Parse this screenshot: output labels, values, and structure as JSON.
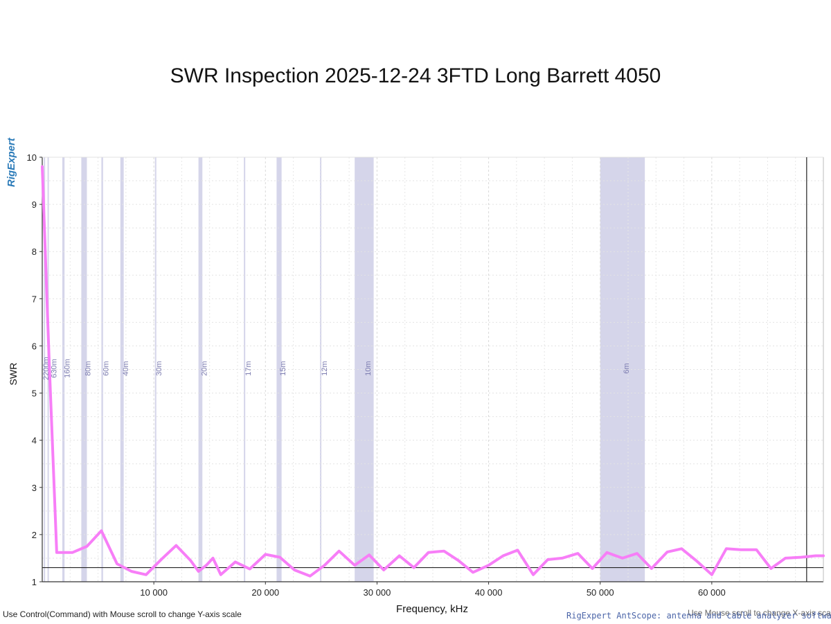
{
  "chart_data": {
    "type": "line",
    "title": "SWR Inspection 2025-12-24 3FTD Long Barrett 4050",
    "xlabel": "Frequency, kHz",
    "ylabel": "SWR",
    "xlim": [
      0,
      70000
    ],
    "ylim": [
      1,
      10
    ],
    "x_ticks": [
      "10 000",
      "20 000",
      "30 000",
      "40 000",
      "50 000",
      "60 000"
    ],
    "x_tick_values": [
      10000,
      20000,
      30000,
      40000,
      50000,
      60000
    ],
    "y_ticks": [
      "1",
      "2",
      "3",
      "4",
      "5",
      "6",
      "7",
      "8",
      "9",
      "10"
    ],
    "y_tick_values": [
      1,
      2,
      3,
      4,
      5,
      6,
      7,
      8,
      9,
      10
    ],
    "grid": true,
    "reference_line_y": 1.3,
    "marker_line_x": 68500,
    "line_color": "#f77ef7",
    "band_color": "#d5d5ea",
    "bands": [
      {
        "label": "2200m",
        "start": 135,
        "end": 138
      },
      {
        "label": "630m",
        "start": 472,
        "end": 479
      },
      {
        "label": "160m",
        "start": 1800,
        "end": 2000
      },
      {
        "label": "80m",
        "start": 3500,
        "end": 4000
      },
      {
        "label": "60m",
        "start": 5300,
        "end": 5450
      },
      {
        "label": "40m",
        "start": 7000,
        "end": 7300
      },
      {
        "label": "30m",
        "start": 10100,
        "end": 10150
      },
      {
        "label": "20m",
        "start": 14000,
        "end": 14350
      },
      {
        "label": "17m",
        "start": 18068,
        "end": 18168
      },
      {
        "label": "15m",
        "start": 21000,
        "end": 21450
      },
      {
        "label": "12m",
        "start": 24890,
        "end": 24990
      },
      {
        "label": "10m",
        "start": 28000,
        "end": 29700
      },
      {
        "label": "6m",
        "start": 50000,
        "end": 54000
      }
    ],
    "series": [
      {
        "x": [
          0,
          600,
          1300,
          2700,
          4000,
          5300,
          6700,
          8000,
          9300,
          10700,
          12000,
          13300,
          14000,
          14700,
          15300,
          16000,
          17300,
          18600,
          20000,
          21300,
          22600,
          24000,
          25300,
          26600,
          28000,
          29300,
          30600,
          32000,
          33300,
          34600,
          36000,
          37300,
          38600,
          40000,
          41300,
          42600,
          44000,
          45300,
          46600,
          48000,
          49300,
          50600,
          52000,
          53300,
          54600,
          56000,
          57300,
          58600,
          60000,
          61300,
          62600,
          64000,
          65300,
          66600,
          68000,
          69300,
          70000
        ],
        "y": [
          9.8,
          5.8,
          1.62,
          1.62,
          1.75,
          2.08,
          1.38,
          1.22,
          1.15,
          1.48,
          1.77,
          1.45,
          1.22,
          1.35,
          1.5,
          1.15,
          1.42,
          1.27,
          1.58,
          1.52,
          1.25,
          1.12,
          1.35,
          1.65,
          1.35,
          1.57,
          1.25,
          1.55,
          1.3,
          1.62,
          1.65,
          1.45,
          1.2,
          1.35,
          1.55,
          1.67,
          1.15,
          1.47,
          1.5,
          1.6,
          1.28,
          1.62,
          1.5,
          1.6,
          1.28,
          1.63,
          1.7,
          1.45,
          1.15,
          1.7,
          1.68,
          1.68,
          1.28,
          1.5,
          1.52,
          1.55,
          1.55
        ]
      }
    ]
  },
  "hints": {
    "left": "Use Control(Command) with Mouse scroll to change Y-axis scale",
    "right": "Use Mouse scroll to change X-axis scale",
    "credit": "RigExpert AntScope: antenna and cable analyzer software"
  },
  "logo": "RigExpert"
}
